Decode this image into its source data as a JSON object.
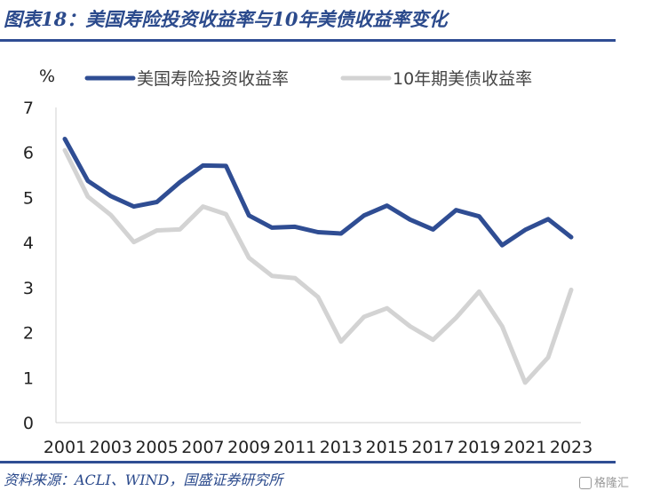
{
  "title": "图表18：美国寿险投资收益率与10年美债收益率变化",
  "source": "资料来源：ACLI、WIND，国盛证券研究所",
  "watermark": "格隆汇",
  "colors": {
    "accent": "#2f4d93",
    "series1": "#2f4d93",
    "series2": "#d3d3d3"
  },
  "chart_data": {
    "type": "line",
    "ylabel": "%",
    "ylim": [
      0,
      7
    ],
    "yticks": [
      "0",
      "1",
      "2",
      "3",
      "4",
      "5",
      "6",
      "7"
    ],
    "x": [
      2001,
      2002,
      2003,
      2004,
      2005,
      2006,
      2007,
      2008,
      2009,
      2010,
      2011,
      2012,
      2013,
      2014,
      2015,
      2016,
      2017,
      2018,
      2019,
      2020,
      2021,
      2022,
      2023
    ],
    "xticks": [
      "2001",
      "2003",
      "2005",
      "2007",
      "2009",
      "2011",
      "2013",
      "2015",
      "2017",
      "2019",
      "2021",
      "2023"
    ],
    "grid": false,
    "legend": "top",
    "series": [
      {
        "name": "美国寿险投资收益率",
        "color": "#2f4d93",
        "values": [
          6.3,
          5.37,
          5.03,
          4.8,
          4.9,
          5.34,
          5.71,
          5.7,
          4.6,
          4.33,
          4.35,
          4.23,
          4.2,
          4.6,
          4.82,
          4.51,
          4.29,
          4.72,
          4.58,
          3.94,
          4.28,
          4.52,
          4.12
        ]
      },
      {
        "name": "10年期美债收益率",
        "color": "#d3d3d3",
        "values": [
          6.05,
          5.02,
          4.61,
          4.01,
          4.27,
          4.29,
          4.8,
          4.63,
          3.66,
          3.26,
          3.21,
          2.79,
          1.8,
          2.35,
          2.54,
          2.14,
          1.84,
          2.33,
          2.91,
          2.14,
          0.89,
          1.45,
          2.95
        ]
      }
    ]
  }
}
